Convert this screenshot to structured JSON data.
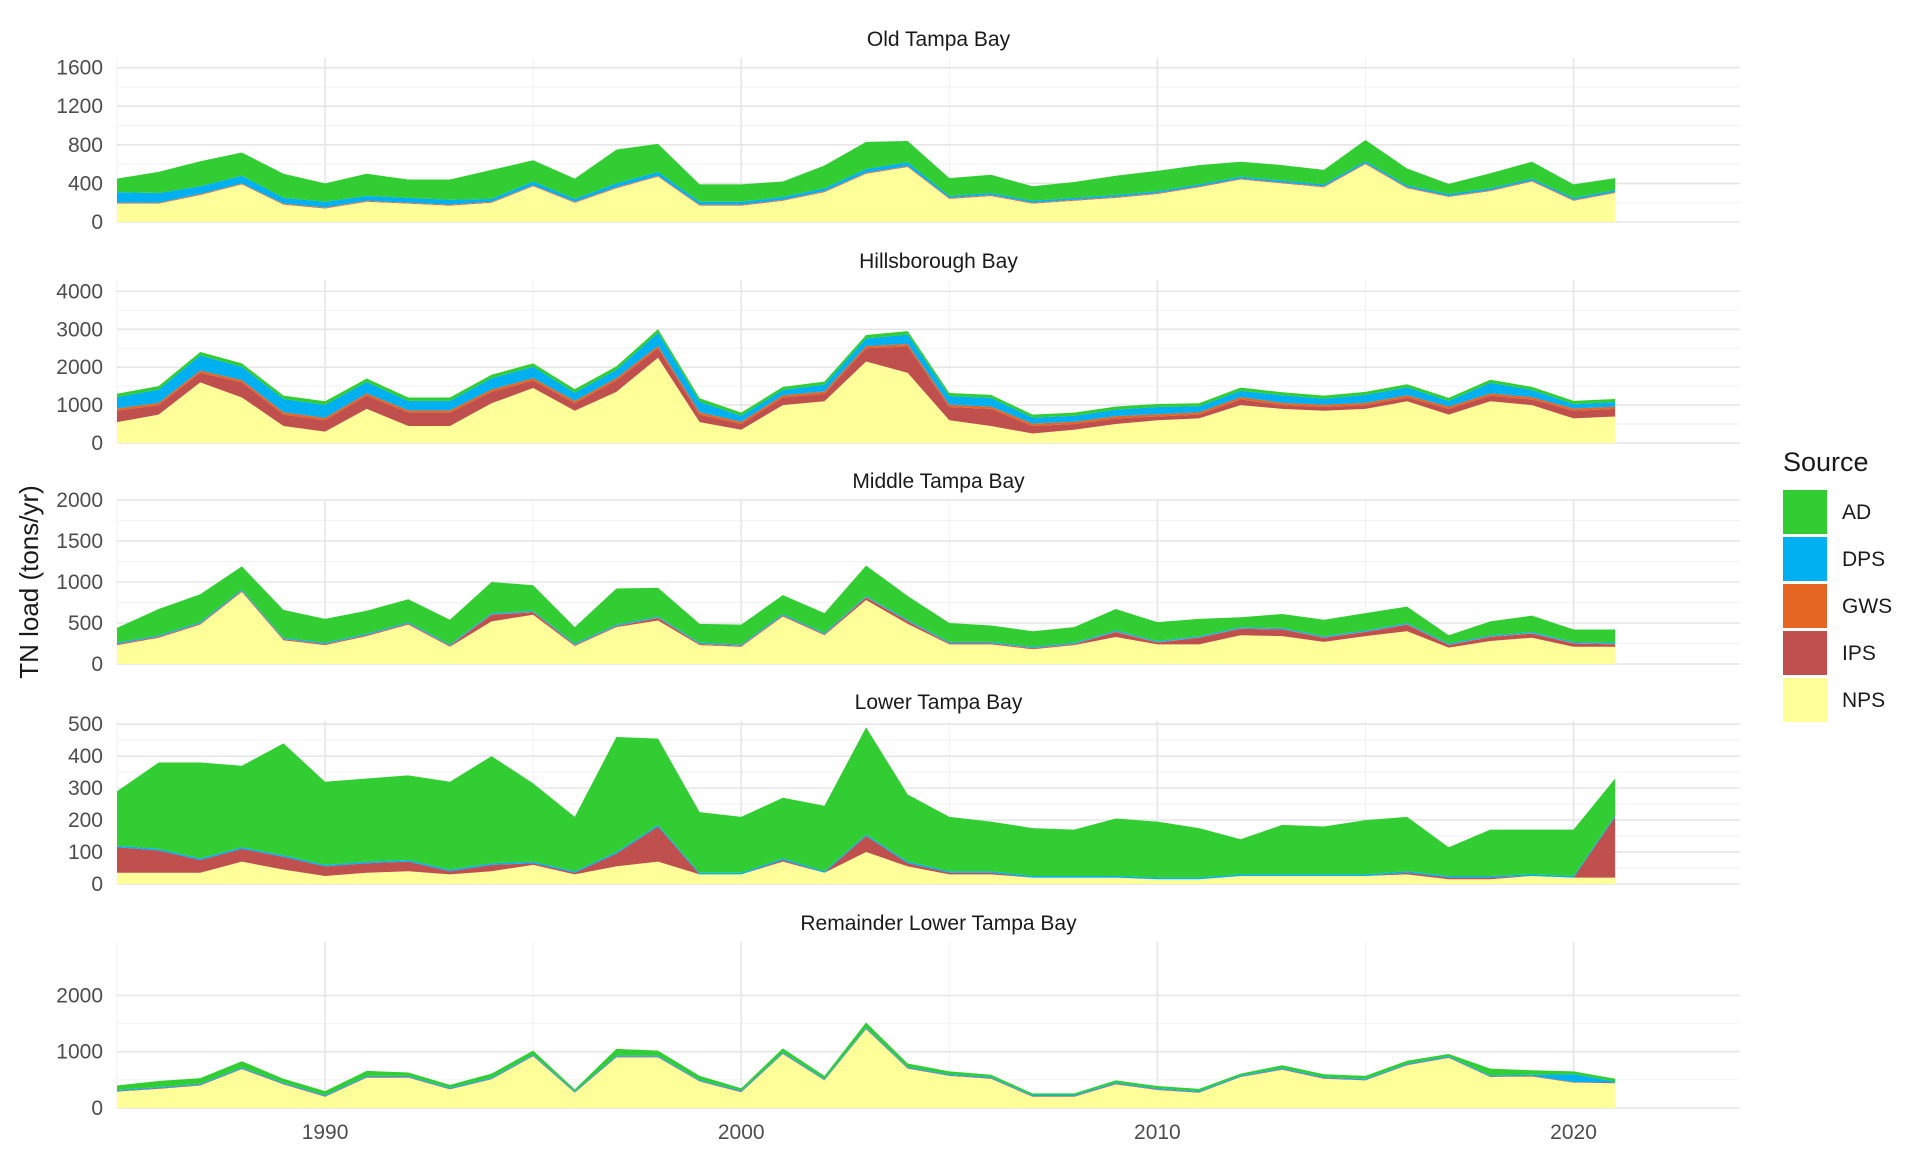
{
  "chart_data": {
    "type": "area",
    "ylabel": "TN load (tons/yr)",
    "years": [
      1985,
      1986,
      1987,
      1988,
      1989,
      1990,
      1991,
      1992,
      1993,
      1994,
      1995,
      1996,
      1997,
      1998,
      1999,
      2000,
      2001,
      2002,
      2003,
      2004,
      2005,
      2006,
      2007,
      2008,
      2009,
      2010,
      2011,
      2012,
      2013,
      2014,
      2015,
      2016,
      2017,
      2018,
      2019,
      2020,
      2021
    ],
    "x_ticks": [
      1990,
      2000,
      2010,
      2020
    ],
    "x_range": [
      1985,
      2024
    ],
    "legend": {
      "title": "Source",
      "entries": [
        {
          "key": "AD",
          "label": "AD",
          "color": "#32CD32"
        },
        {
          "key": "DPS",
          "label": "DPS",
          "color": "#00B0F0"
        },
        {
          "key": "GWS",
          "label": "GWS",
          "color": "#E56623"
        },
        {
          "key": "IPS",
          "label": "IPS",
          "color": "#C0504D"
        },
        {
          "key": "NPS",
          "label": "NPS",
          "color": "#FFFF99"
        }
      ]
    },
    "stack_order_bottom_to_top": [
      "NPS",
      "IPS",
      "GWS",
      "DPS",
      "AD"
    ],
    "panels": [
      {
        "title": "Old Tampa Bay",
        "ylim": [
          0,
          1700
        ],
        "y_ticks": [
          0,
          400,
          800,
          1200,
          1600
        ],
        "series": {
          "NPS": [
            190,
            190,
            280,
            390,
            180,
            140,
            210,
            190,
            170,
            200,
            370,
            200,
            350,
            470,
            170,
            170,
            220,
            310,
            500,
            570,
            240,
            270,
            190,
            220,
            250,
            290,
            360,
            440,
            400,
            360,
            600,
            350,
            260,
            320,
            420,
            220,
            300
          ],
          "IPS": [
            5,
            5,
            5,
            5,
            5,
            5,
            5,
            5,
            5,
            5,
            5,
            5,
            5,
            5,
            5,
            5,
            5,
            5,
            5,
            5,
            5,
            5,
            5,
            5,
            5,
            5,
            5,
            5,
            5,
            5,
            5,
            5,
            5,
            5,
            5,
            5,
            5
          ],
          "GWS": [
            5,
            5,
            5,
            5,
            5,
            5,
            5,
            5,
            5,
            5,
            5,
            5,
            5,
            5,
            5,
            5,
            5,
            5,
            5,
            5,
            5,
            5,
            5,
            5,
            5,
            5,
            5,
            5,
            5,
            5,
            5,
            5,
            5,
            5,
            5,
            5,
            5
          ],
          "DPS": [
            110,
            100,
            80,
            80,
            60,
            60,
            50,
            50,
            50,
            30,
            40,
            30,
            40,
            40,
            30,
            30,
            30,
            30,
            40,
            40,
            20,
            20,
            20,
            20,
            20,
            20,
            20,
            20,
            20,
            20,
            20,
            20,
            20,
            20,
            20,
            20,
            20
          ],
          "AD": [
            140,
            220,
            260,
            240,
            250,
            190,
            230,
            190,
            210,
            300,
            220,
            210,
            350,
            290,
            180,
            180,
            160,
            235,
            280,
            220,
            185,
            190,
            150,
            165,
            200,
            210,
            200,
            155,
            160,
            150,
            220,
            175,
            105,
            155,
            175,
            140,
            125
          ]
        }
      },
      {
        "title": "Hillsborough Bay",
        "ylim": [
          0,
          4300
        ],
        "y_ticks": [
          0,
          1000,
          2000,
          3000,
          4000
        ],
        "series": {
          "NPS": [
            550,
            750,
            1600,
            1200,
            450,
            300,
            900,
            450,
            450,
            1050,
            1450,
            850,
            1350,
            2250,
            550,
            350,
            1000,
            1100,
            2150,
            1850,
            600,
            450,
            250,
            350,
            500,
            600,
            650,
            1000,
            900,
            850,
            900,
            1100,
            750,
            1100,
            1000,
            650,
            700
          ],
          "IPS": [
            300,
            250,
            250,
            400,
            300,
            300,
            350,
            350,
            350,
            300,
            200,
            200,
            300,
            250,
            200,
            150,
            200,
            200,
            350,
            700,
            350,
            450,
            200,
            150,
            150,
            100,
            100,
            150,
            100,
            100,
            100,
            100,
            150,
            150,
            150,
            200,
            200
          ],
          "GWS": [
            60,
            60,
            60,
            60,
            60,
            60,
            60,
            60,
            60,
            60,
            60,
            60,
            60,
            60,
            60,
            60,
            60,
            60,
            60,
            60,
            60,
            60,
            60,
            60,
            60,
            60,
            60,
            60,
            60,
            60,
            60,
            60,
            60,
            60,
            60,
            60,
            60
          ],
          "DPS": [
            300,
            350,
            400,
            350,
            350,
            350,
            300,
            250,
            250,
            300,
            300,
            220,
            220,
            350,
            280,
            160,
            140,
            180,
            200,
            250,
            230,
            230,
            160,
            160,
            170,
            190,
            160,
            170,
            200,
            160,
            210,
            210,
            150,
            280,
            190,
            120,
            120
          ],
          "AD": [
            90,
            90,
            90,
            90,
            90,
            90,
            90,
            90,
            90,
            90,
            90,
            90,
            90,
            90,
            90,
            80,
            80,
            80,
            90,
            90,
            80,
            80,
            80,
            80,
            80,
            80,
            80,
            80,
            80,
            80,
            80,
            80,
            80,
            80,
            80,
            80,
            80
          ]
        }
      },
      {
        "title": "Middle Tampa Bay",
        "ylim": [
          0,
          2000
        ],
        "y_ticks": [
          0,
          500,
          1000,
          1500,
          2000
        ],
        "series": {
          "NPS": [
            230,
            320,
            480,
            880,
            290,
            230,
            340,
            480,
            210,
            520,
            600,
            220,
            450,
            530,
            230,
            210,
            580,
            350,
            780,
            490,
            240,
            240,
            180,
            230,
            330,
            240,
            240,
            350,
            340,
            270,
            340,
            400,
            200,
            280,
            320,
            210,
            210
          ],
          "IPS": [
            10,
            10,
            10,
            10,
            10,
            10,
            10,
            10,
            10,
            80,
            30,
            10,
            10,
            30,
            10,
            10,
            10,
            10,
            30,
            30,
            10,
            10,
            10,
            10,
            60,
            20,
            80,
            80,
            80,
            50,
            50,
            80,
            30,
            50,
            50,
            40,
            30
          ],
          "GWS": [
            5,
            5,
            5,
            5,
            5,
            5,
            5,
            5,
            5,
            5,
            5,
            5,
            5,
            5,
            5,
            5,
            5,
            5,
            5,
            5,
            5,
            5,
            5,
            5,
            5,
            5,
            5,
            5,
            5,
            5,
            5,
            5,
            5,
            5,
            5,
            5,
            5
          ],
          "DPS": [
            15,
            15,
            15,
            15,
            15,
            15,
            15,
            15,
            15,
            15,
            15,
            15,
            15,
            15,
            15,
            15,
            15,
            15,
            15,
            15,
            15,
            15,
            15,
            15,
            15,
            15,
            15,
            15,
            15,
            15,
            15,
            15,
            15,
            15,
            15,
            15,
            15
          ],
          "AD": [
            180,
            320,
            340,
            280,
            340,
            290,
            280,
            280,
            300,
            380,
            310,
            200,
            440,
            350,
            230,
            240,
            230,
            240,
            370,
            290,
            230,
            200,
            190,
            190,
            260,
            230,
            210,
            120,
            170,
            200,
            210,
            200,
            100,
            170,
            200,
            150,
            160
          ]
        }
      },
      {
        "title": "Lower Tampa Bay",
        "ylim": [
          0,
          510
        ],
        "y_ticks": [
          0,
          100,
          200,
          300,
          400,
          500
        ],
        "series": {
          "NPS": [
            35,
            35,
            35,
            70,
            45,
            25,
            35,
            40,
            30,
            40,
            60,
            30,
            55,
            70,
            30,
            30,
            70,
            35,
            100,
            55,
            30,
            30,
            20,
            20,
            20,
            15,
            15,
            25,
            25,
            25,
            25,
            30,
            15,
            15,
            25,
            20,
            20
          ],
          "IPS": [
            80,
            70,
            40,
            40,
            40,
            30,
            30,
            30,
            10,
            20,
            5,
            5,
            40,
            110,
            0,
            0,
            5,
            0,
            50,
            10,
            5,
            5,
            0,
            0,
            0,
            0,
            0,
            0,
            0,
            0,
            0,
            5,
            5,
            5,
            0,
            0,
            190
          ],
          "GWS": [
            0,
            0,
            0,
            0,
            0,
            0,
            0,
            0,
            0,
            0,
            0,
            0,
            0,
            0,
            0,
            0,
            0,
            0,
            0,
            0,
            0,
            0,
            0,
            0,
            0,
            0,
            0,
            0,
            0,
            0,
            0,
            0,
            0,
            0,
            0,
            0,
            0
          ],
          "DPS": [
            5,
            5,
            5,
            5,
            5,
            5,
            5,
            5,
            5,
            5,
            5,
            5,
            5,
            5,
            5,
            5,
            5,
            5,
            5,
            5,
            5,
            5,
            5,
            5,
            5,
            5,
            5,
            5,
            5,
            5,
            5,
            5,
            5,
            5,
            5,
            5,
            5
          ],
          "AD": [
            170,
            270,
            300,
            255,
            350,
            260,
            260,
            265,
            275,
            335,
            245,
            170,
            360,
            270,
            190,
            175,
            190,
            205,
            335,
            210,
            170,
            155,
            150,
            145,
            180,
            175,
            155,
            110,
            155,
            150,
            170,
            170,
            90,
            145,
            140,
            145,
            115
          ]
        }
      },
      {
        "title": "Remainder Lower Tampa Bay",
        "ylim": [
          0,
          2950
        ],
        "y_ticks": [
          0,
          1000,
          2000
        ],
        "series": {
          "NPS": [
            290,
            340,
            400,
            690,
            420,
            200,
            540,
            540,
            330,
            510,
            920,
            270,
            900,
            900,
            470,
            280,
            960,
            490,
            1400,
            700,
            570,
            520,
            200,
            200,
            420,
            320,
            270,
            550,
            680,
            520,
            490,
            760,
            890,
            550,
            560,
            450,
            440
          ],
          "IPS": [
            10,
            10,
            10,
            10,
            10,
            10,
            10,
            10,
            10,
            10,
            10,
            10,
            10,
            10,
            10,
            10,
            10,
            10,
            10,
            10,
            10,
            10,
            10,
            10,
            10,
            10,
            10,
            10,
            10,
            10,
            10,
            10,
            10,
            10,
            10,
            10,
            10
          ],
          "GWS": [
            0,
            0,
            0,
            0,
            0,
            0,
            0,
            0,
            0,
            0,
            0,
            0,
            0,
            0,
            0,
            0,
            0,
            0,
            0,
            0,
            0,
            0,
            0,
            0,
            0,
            0,
            0,
            0,
            0,
            0,
            0,
            0,
            0,
            0,
            0,
            0,
            0
          ],
          "DPS": [
            20,
            20,
            20,
            20,
            20,
            20,
            20,
            20,
            20,
            20,
            20,
            20,
            20,
            20,
            20,
            20,
            20,
            20,
            20,
            20,
            20,
            20,
            20,
            20,
            20,
            20,
            20,
            20,
            20,
            20,
            20,
            20,
            20,
            20,
            20,
            140,
            20
          ],
          "AD": [
            80,
            110,
            100,
            110,
            70,
            70,
            90,
            60,
            50,
            70,
            70,
            30,
            120,
            90,
            70,
            40,
            70,
            50,
            90,
            60,
            50,
            40,
            30,
            30,
            40,
            40,
            40,
            30,
            50,
            50,
            50,
            50,
            40,
            120,
            80,
            50,
            50
          ]
        }
      }
    ]
  }
}
